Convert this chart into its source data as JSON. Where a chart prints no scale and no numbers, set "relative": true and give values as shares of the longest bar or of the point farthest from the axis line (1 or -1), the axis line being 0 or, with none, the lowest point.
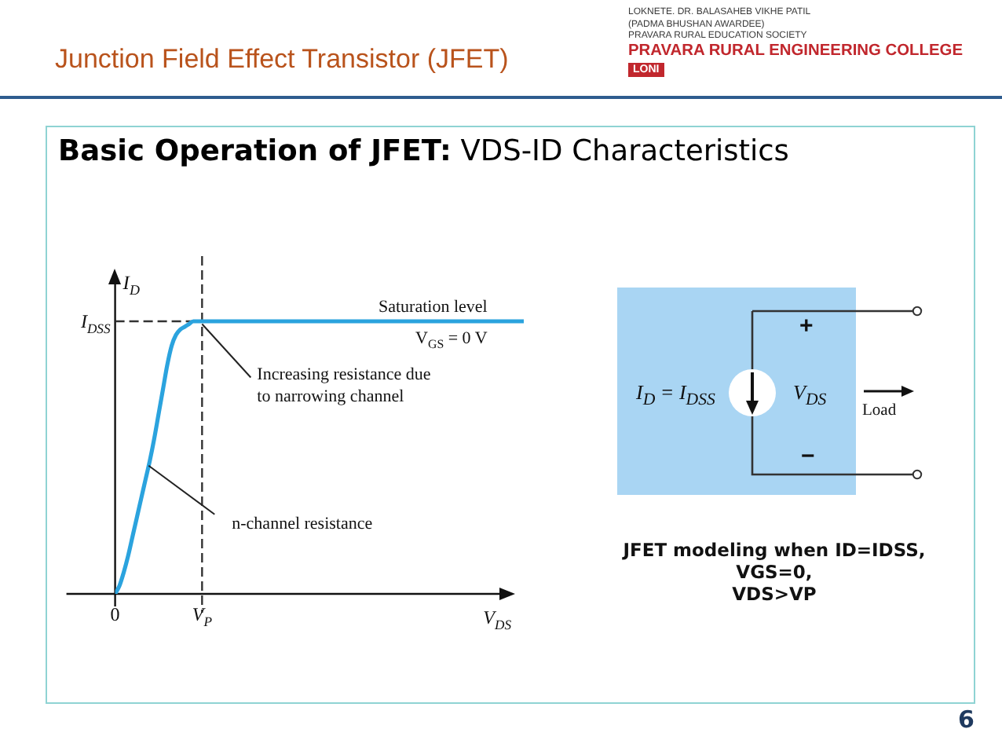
{
  "chart_data": {
    "type": "line",
    "title": "Junction Field Effect Transistor (JFET)",
    "subtitle": "Basic Operation of JFET: VDS-ID Characteristics",
    "xlabel": "V$_{DS}$",
    "ylabel": "I$_{D}$",
    "relative": true,
    "categories": [
      "0",
      null,
      null,
      null,
      null,
      null,
      null,
      null,
      null,
      null,
      null,
      null,
      null,
      null,
      null,
      null,
      null,
      null,
      null,
      null,
      "V$_{P}$",
      null,
      null,
      null,
      null,
      null,
      null,
      null,
      null,
      null,
      null,
      null,
      null,
      null,
      null,
      null,
      null,
      null,
      null,
      null,
      null,
      null,
      null,
      null,
      null,
      null,
      null,
      null,
      null,
      null,
      null,
      null,
      null,
      null,
      null,
      null,
      null,
      null,
      null,
      null,
      null,
      null,
      null,
      null,
      null,
      null,
      null,
      null,
      null,
      null,
      null,
      null,
      null,
      null,
      null,
      null,
      null,
      null,
      null,
      null,
      null,
      null,
      null,
      null,
      null,
      null,
      null,
      null,
      null,
      null,
      null,
      null,
      null,
      null,
      null
    ],
    "series": [
      {
        "name": "V$_{GS}$ = 0 V",
        "color": "#2ba3de",
        "values": [
          0,
          0.03,
          0.08,
          0.14,
          0.21,
          0.28,
          0.35,
          0.42,
          0.49,
          0.57,
          0.66,
          0.75,
          0.84,
          0.91,
          0.95,
          0.97,
          0.98,
          0.99,
          1,
          1,
          1,
          1,
          1,
          1,
          1,
          1,
          1,
          1,
          1,
          1,
          1,
          1,
          1,
          1,
          1,
          1,
          1,
          1,
          1,
          1,
          1,
          1,
          1,
          1,
          1,
          1,
          1,
          1,
          1,
          1,
          1,
          1,
          1,
          1,
          1,
          1,
          1,
          1,
          1,
          1,
          1,
          1,
          1,
          1,
          1,
          1,
          1,
          1,
          1,
          1,
          1,
          1,
          1,
          1,
          1,
          1,
          1,
          1,
          1,
          1,
          1,
          1,
          1,
          1,
          1,
          1,
          1,
          1,
          1,
          1,
          1,
          1,
          1,
          1,
          1
        ]
      },
      {
        "name": "I$_{DSS}$",
        "color": "#333333",
        "line_style": "dashed",
        "x": [
          "0",
          "V$_{P}$"
        ],
        "values": [
          1,
          1
        ]
      }
    ],
    "ref_lines": [
      {
        "axis": "x",
        "value": "V$_{P}$",
        "line_style": "dashed",
        "color": "#333333"
      }
    ],
    "annotations": [
      "Saturation level",
      "Increasing resistance due\nto narrowing channel",
      "n-channel resistance",
      "LOKNETE. DR. BALASAHEB VIKHE PATIL",
      "(PADMA BHUSHAN AWARDEE)",
      "PRAVARA RURAL EDUCATION SOCIETY",
      "PRAVARA RURAL ENGINEERING COLLEGE",
      "LONI",
      "I$_{D}$ = I$_{DSS}$",
      "V$_{DS}$",
      "+",
      "−",
      "Load",
      "JFET modeling when ID=IDSS,\nVGS=0,\nVDS>VP",
      "6"
    ]
  }
}
